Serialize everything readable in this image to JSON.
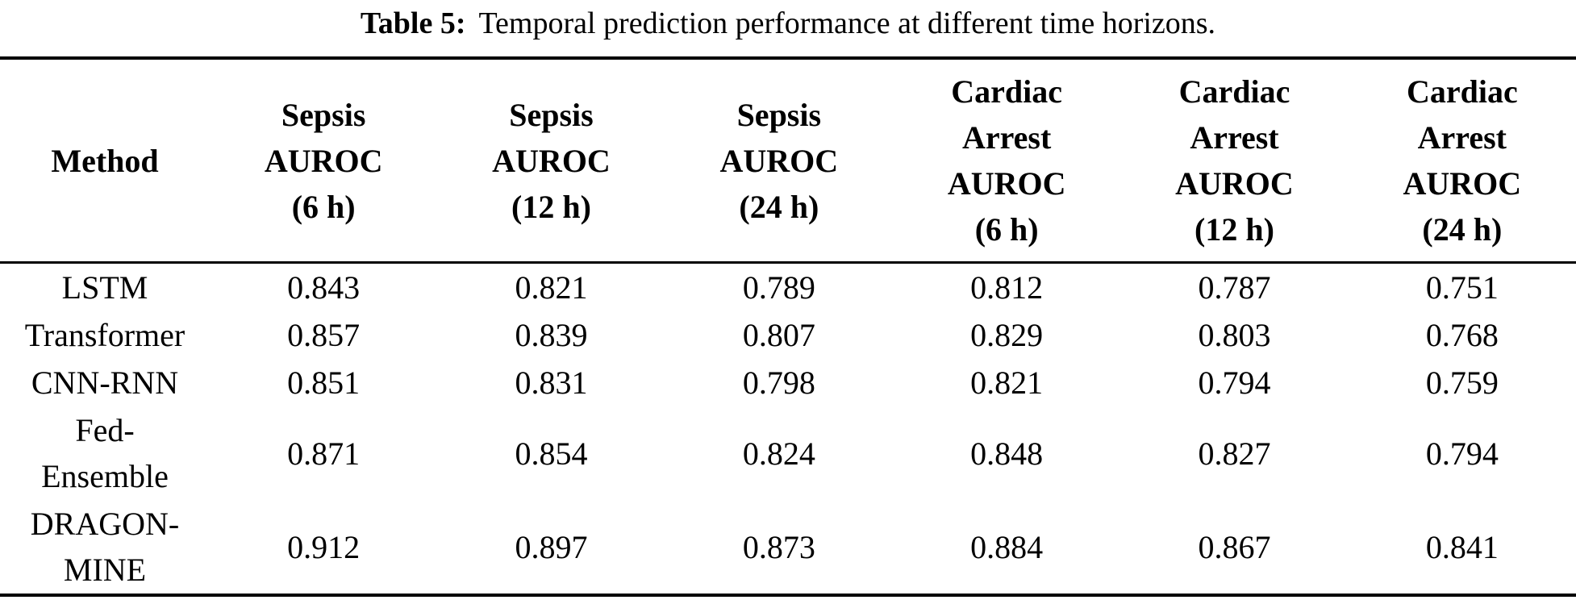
{
  "colors": {
    "text": "#000000",
    "background": "#ffffff",
    "rule": "#000000"
  },
  "caption": {
    "label": "Table 5:",
    "text": "Temporal prediction performance at different time horizons."
  },
  "table": {
    "columns": [
      {
        "key": "method",
        "label": "Method"
      },
      {
        "key": "sepsis-auroc-6h",
        "label": "Sepsis\nAUROC\n(6 h)"
      },
      {
        "key": "sepsis-auroc-12h",
        "label": "Sepsis\nAUROC\n(12 h)"
      },
      {
        "key": "sepsis-auroc-24h",
        "label": "Sepsis\nAUROC\n(24 h)"
      },
      {
        "key": "cardiac-arrest-auroc-6h",
        "label": "Cardiac\nArrest\nAUROC\n(6 h)"
      },
      {
        "key": "cardiac-arrest-auroc-12h",
        "label": "Cardiac\nArrest\nAUROC\n(12 h)"
      },
      {
        "key": "cardiac-arrest-auroc-24h",
        "label": "Cardiac\nArrest\nAUROC\n(24 h)"
      }
    ],
    "rows": [
      {
        "method": "LSTM",
        "values": [
          "0.843",
          "0.821",
          "0.789",
          "0.812",
          "0.787",
          "0.751"
        ]
      },
      {
        "method": "Transformer",
        "values": [
          "0.857",
          "0.839",
          "0.807",
          "0.829",
          "0.803",
          "0.768"
        ]
      },
      {
        "method": "CNN-RNN",
        "values": [
          "0.851",
          "0.831",
          "0.798",
          "0.821",
          "0.794",
          "0.759"
        ]
      },
      {
        "method": "Fed-\nEnsemble",
        "values": [
          "0.871",
          "0.854",
          "0.824",
          "0.848",
          "0.827",
          "0.794"
        ]
      },
      {
        "method": "DRAGON-\nMINE",
        "values": [
          "0.912",
          "0.897",
          "0.873",
          "0.884",
          "0.867",
          "0.841"
        ]
      }
    ]
  }
}
